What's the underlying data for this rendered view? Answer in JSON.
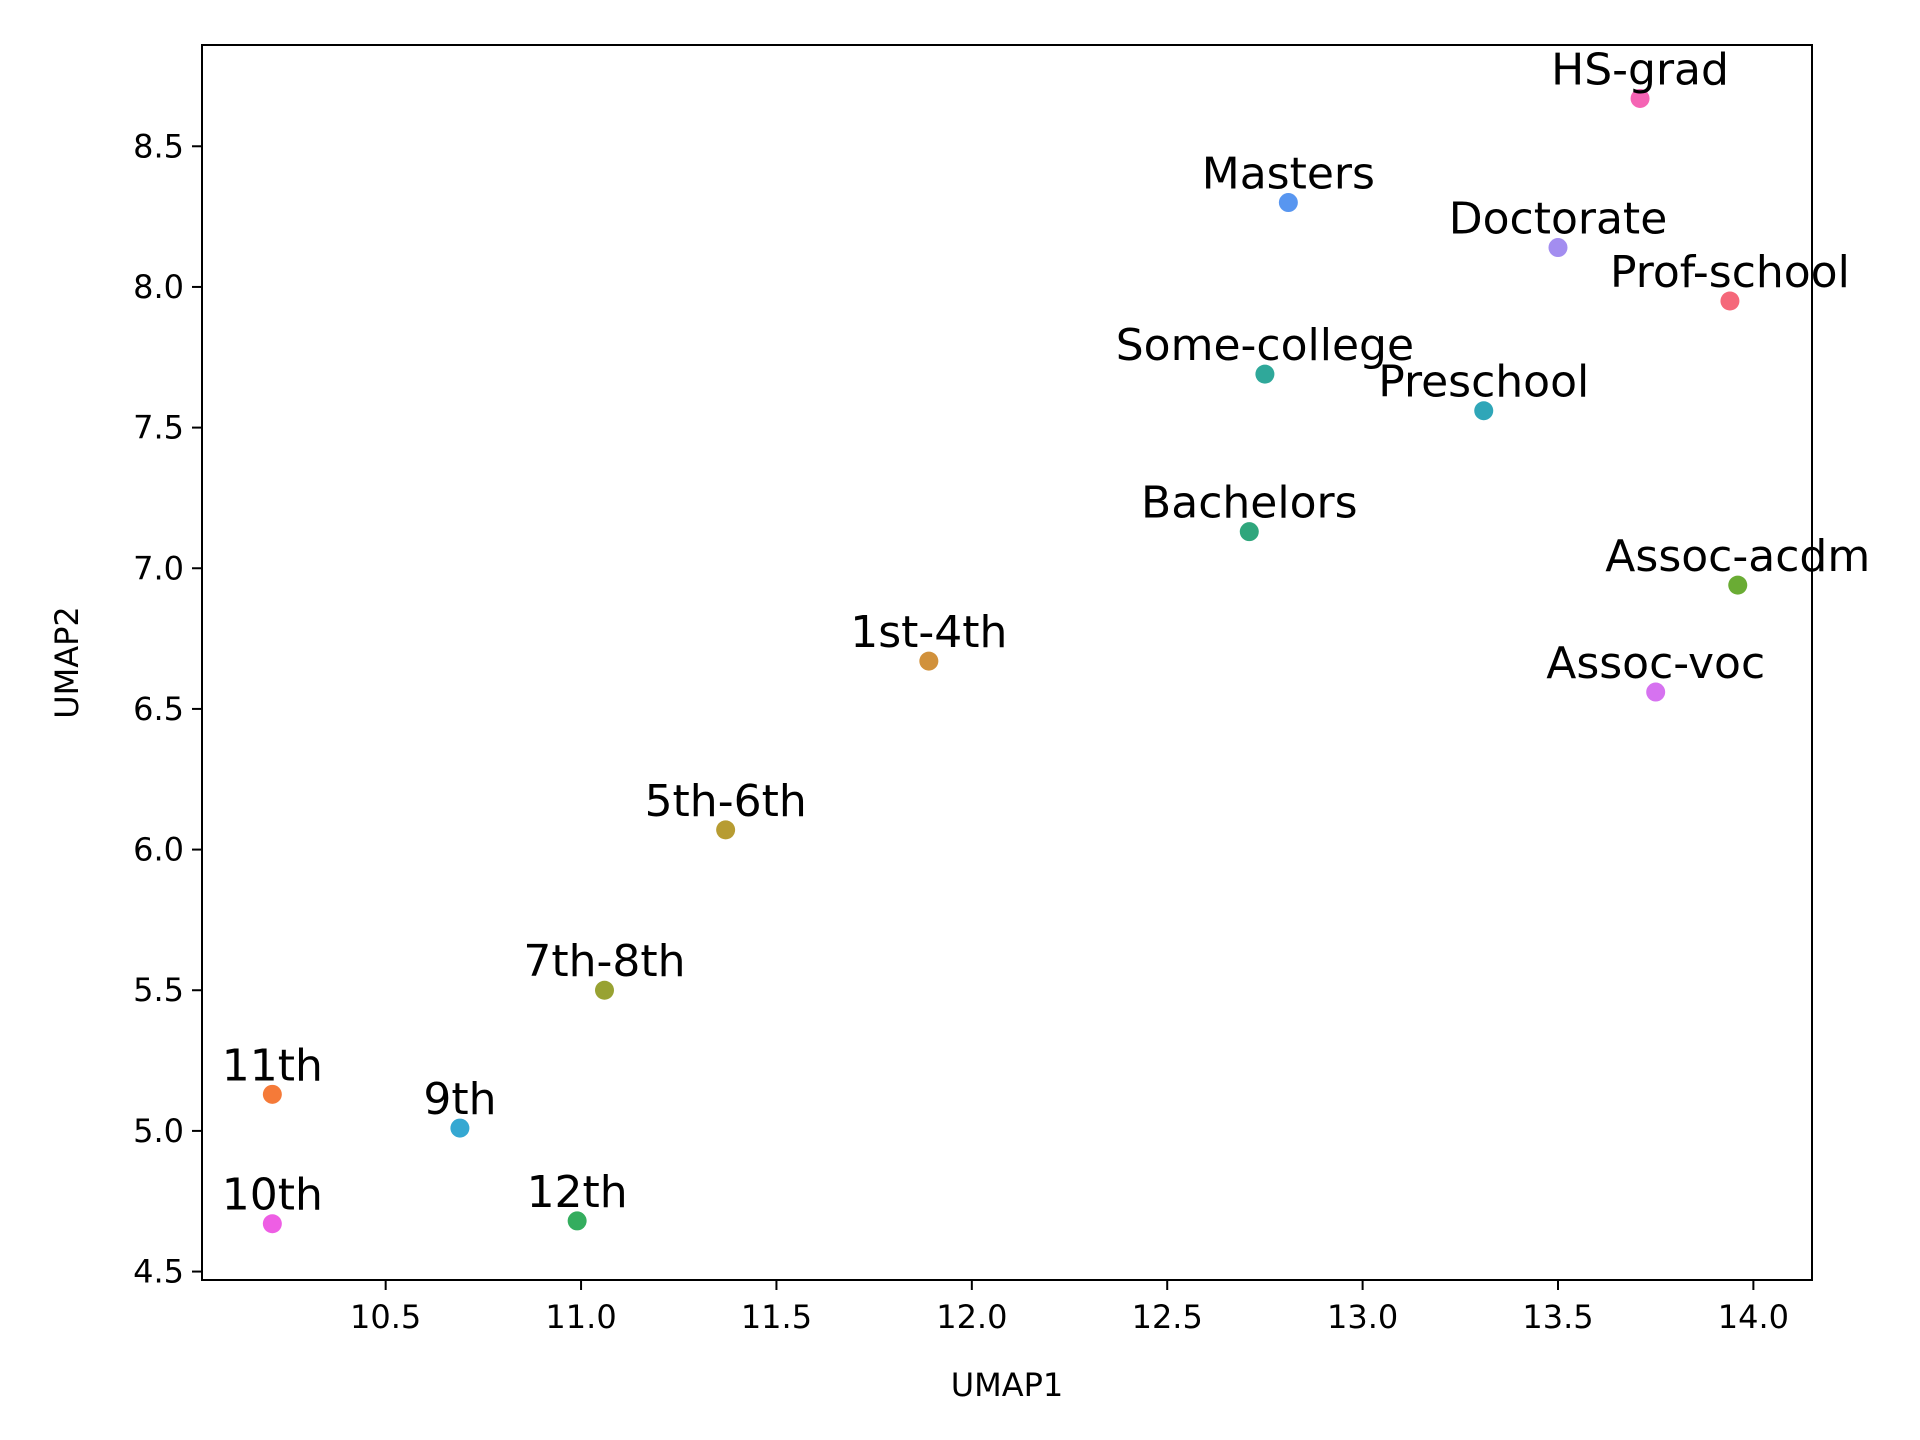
{
  "chart_data": {
    "type": "scatter",
    "title": "",
    "xlabel": "UMAP1",
    "ylabel": "UMAP2",
    "xlim": [
      10.03,
      14.15
    ],
    "ylim": [
      4.47,
      8.86
    ],
    "xticks": [
      10.5,
      11.0,
      11.5,
      12.0,
      12.5,
      13.0,
      13.5,
      14.0
    ],
    "yticks": [
      4.5,
      5.0,
      5.5,
      6.0,
      6.5,
      7.0,
      7.5,
      8.0,
      8.5
    ],
    "xtick_labels": [
      "10.5",
      "11.0",
      "11.5",
      "12.0",
      "12.5",
      "13.0",
      "13.5",
      "14.0"
    ],
    "ytick_labels": [
      "4.5",
      "5.0",
      "5.5",
      "6.0",
      "6.5",
      "7.0",
      "7.5",
      "8.0",
      "8.5"
    ],
    "grid": false,
    "legend": "none",
    "points": [
      {
        "label": "HS-grad",
        "x": 13.71,
        "y": 8.67,
        "color": "#f564b4"
      },
      {
        "label": "Masters",
        "x": 12.81,
        "y": 8.3,
        "color": "#5896f0"
      },
      {
        "label": "Doctorate",
        "x": 13.5,
        "y": 8.14,
        "color": "#a38df0"
      },
      {
        "label": "Prof-school",
        "x": 13.94,
        "y": 7.95,
        "color": "#f5687a"
      },
      {
        "label": "Some-college",
        "x": 12.75,
        "y": 7.69,
        "color": "#2fa89a"
      },
      {
        "label": "Preschool",
        "x": 13.31,
        "y": 7.56,
        "color": "#2fa6b8"
      },
      {
        "label": "Bachelors",
        "x": 12.71,
        "y": 7.13,
        "color": "#2fa67c"
      },
      {
        "label": "Assoc-acdm",
        "x": 13.96,
        "y": 6.94,
        "color": "#6aac34"
      },
      {
        "label": "1st-4th",
        "x": 11.89,
        "y": 6.67,
        "color": "#d1913b"
      },
      {
        "label": "Assoc-voc",
        "x": 13.75,
        "y": 6.56,
        "color": "#d672f0"
      },
      {
        "label": "5th-6th",
        "x": 11.37,
        "y": 6.07,
        "color": "#b79c32"
      },
      {
        "label": "7th-8th",
        "x": 11.06,
        "y": 5.5,
        "color": "#98a232"
      },
      {
        "label": "11th",
        "x": 10.21,
        "y": 5.13,
        "color": "#f57a38"
      },
      {
        "label": "9th",
        "x": 10.69,
        "y": 5.01,
        "color": "#35a8d2"
      },
      {
        "label": "12th",
        "x": 10.99,
        "y": 4.68,
        "color": "#34ad5e"
      },
      {
        "label": "10th",
        "x": 10.21,
        "y": 4.67,
        "color": "#ee5ee4"
      }
    ]
  }
}
